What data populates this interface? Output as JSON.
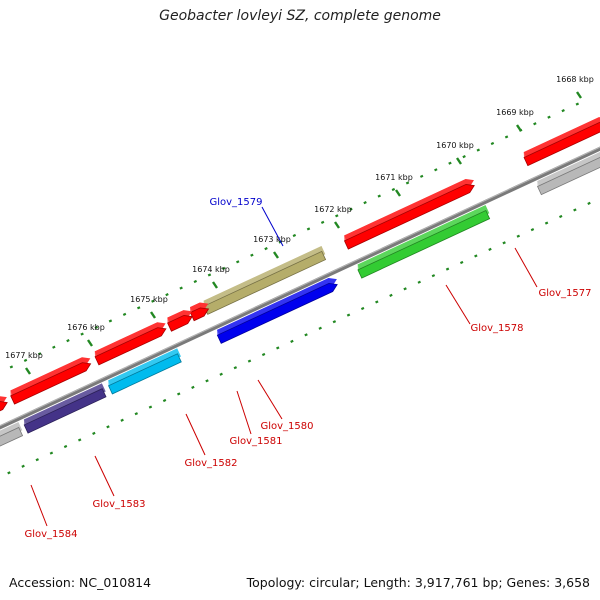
{
  "title": "Geobacter lovleyi SZ, complete genome",
  "footer": {
    "accession": "Accession: NC_010814",
    "summary": "Topology: circular; Length: 3,917,761 bp; Genes: 3,658"
  },
  "ticks": [
    {
      "label": "1668 kbp"
    },
    {
      "label": "1669 kbp"
    },
    {
      "label": "1670 kbp"
    },
    {
      "label": "1671 kbp"
    },
    {
      "label": "1672 kbp"
    },
    {
      "label": "1673 kbp"
    },
    {
      "label": "1674 kbp"
    },
    {
      "label": "1675 kbp"
    },
    {
      "label": "1676 kbp"
    },
    {
      "label": "1677 kbp"
    }
  ],
  "genes": [
    {
      "label": "Glov_1577",
      "colors": [
        "#ff0000",
        "#b8b8b8"
      ],
      "label_color": "#cc0000"
    },
    {
      "label": "Glov_1578",
      "colors": [
        "#ff0000",
        "#33cc33"
      ],
      "label_color": "#cc0000"
    },
    {
      "label": "Glov_1579",
      "colors": [
        "#b5ad6a",
        "#0000ee"
      ],
      "label_color": "#0000cc"
    },
    {
      "label": "Glov_1580",
      "colors": [
        "#ff0000"
      ],
      "label_color": "#cc0000"
    },
    {
      "label": "Glov_1581",
      "colors": [
        "#ff0000"
      ],
      "label_color": "#cc0000"
    },
    {
      "label": "Glov_1582",
      "colors": [
        "#ff0000",
        "#00bbee"
      ],
      "label_color": "#cc0000"
    },
    {
      "label": "Glov_1583",
      "colors": [
        "#ff0000",
        "#443388"
      ],
      "label_color": "#cc0000"
    },
    {
      "label": "Glov_1584",
      "colors": [
        "#ff0000",
        "#b8b8b8"
      ],
      "label_color": "#cc0000"
    }
  ],
  "colors": {
    "backbone": "#7a7a7a",
    "tick_marks": "#228822"
  }
}
